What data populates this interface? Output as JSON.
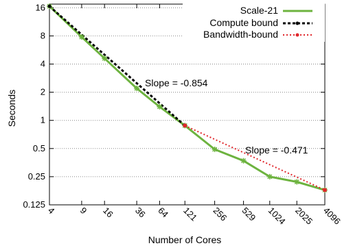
{
  "chart_data": {
    "type": "line",
    "xlabel": "Number of Cores",
    "ylabel": "Seconds",
    "x_scale": "log",
    "y_scale": "log2",
    "ylim": [
      0.125,
      17.5
    ],
    "grid": "horizontal, dotted",
    "legend_position": "top-right",
    "x_categories": [
      "4",
      "9",
      "16",
      "36",
      "64",
      "121",
      "256",
      "529",
      "1024",
      "2025",
      "4096"
    ],
    "y_ticks": [
      {
        "value": 16,
        "label": "16"
      },
      {
        "value": 8,
        "label": "8"
      },
      {
        "value": 4,
        "label": "4"
      },
      {
        "value": 2,
        "label": "2"
      },
      {
        "value": 1,
        "label": "1"
      },
      {
        "value": 0.5,
        "label": "0.5"
      },
      {
        "value": 0.25,
        "label": "0.25"
      },
      {
        "value": 0.125,
        "label": "0.125"
      }
    ],
    "series": [
      {
        "name": "Scale-21",
        "color": "#6db33f",
        "marker": "star",
        "points": [
          [
            4,
            16.6
          ],
          [
            9,
            7.8
          ],
          [
            16,
            4.6
          ],
          [
            36,
            2.2
          ],
          [
            64,
            1.4
          ],
          [
            121,
            0.88
          ],
          [
            256,
            0.49
          ],
          [
            529,
            0.37
          ],
          [
            1024,
            0.25
          ],
          [
            2025,
            0.22
          ],
          [
            4096,
            0.18
          ]
        ]
      },
      {
        "name": "Compute bound",
        "color": "#000000",
        "style": "dashed",
        "points": [
          [
            4,
            16.6
          ],
          [
            121,
            0.88
          ]
        ]
      },
      {
        "name": "Bandwidth-bound",
        "color": "#e0262b",
        "style": "dotted",
        "points": [
          [
            121,
            0.88
          ],
          [
            4096,
            0.18
          ]
        ]
      }
    ],
    "annotations": [
      "Slope = -0.854",
      "Slope = -0.471"
    ]
  }
}
